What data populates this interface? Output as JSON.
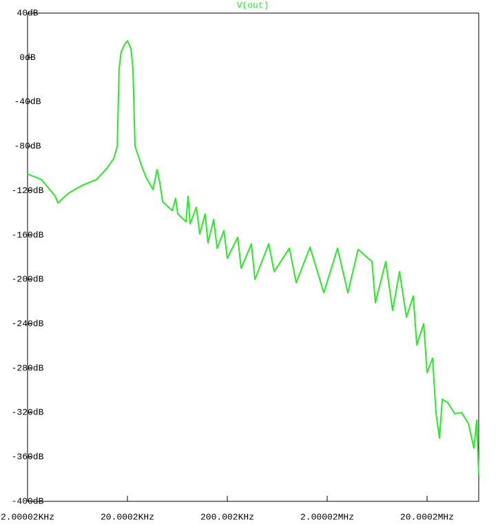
{
  "chart_data": {
    "type": "line",
    "title": "V(out)",
    "color": "#22ee22",
    "xscale": "log",
    "x": [
      2000,
      2750,
      3780,
      4020,
      5190,
      7130,
      9790,
      12400,
      14600,
      15800,
      16500,
      17300,
      18800,
      20000,
      21700,
      22700,
      23800,
      27500,
      30700,
      36000,
      39600,
      42200,
      45000,
      56100,
      60800,
      63700,
      77100,
      80900,
      84900,
      97900,
      106000,
      120000,
      128000,
      146000,
      158000,
      185000,
      200000,
      254000,
      275000,
      348000,
      378000,
      519000,
      589000,
      836000,
      979000,
      1346000,
      1849000,
      2536000,
      3222000,
      4083000,
      5611000,
      6082000,
      7709000,
      9036000,
      10590000,
      12420000,
      14560000,
      15770000,
      18490000,
      20000000,
      22700000,
      24600000,
      26600000,
      28400000,
      32200000,
      37800000,
      44300000,
      51900000,
      58900000,
      62800000,
      65800000
    ],
    "values": [
      -105,
      -110,
      -125,
      -131,
      -122,
      -115,
      -110,
      -100,
      -91,
      -80,
      -10,
      5,
      12,
      15,
      8,
      -10,
      -80,
      -97,
      -108,
      -119,
      -101,
      -113,
      -130,
      -138,
      -127,
      -141,
      -148,
      -125,
      -150,
      -135,
      -159,
      -141,
      -167,
      -146,
      -172,
      -156,
      -181,
      -162,
      -190,
      -168,
      -200,
      -168,
      -193,
      -172,
      -203,
      -171,
      -212,
      -172,
      -212,
      -173,
      -184,
      -221,
      -184,
      -228,
      -193,
      -234,
      -215,
      -259,
      -240,
      -284,
      -271,
      -321,
      -343,
      -308,
      -311,
      -321,
      -320,
      -330,
      -352,
      -327,
      -377
    ],
    "xlim": [
      2000.02,
      65800000
    ],
    "ylim": [
      -400,
      40
    ],
    "xticks": [
      {
        "value": 2000.02,
        "label": "2.00002KHz"
      },
      {
        "value": 20000.2,
        "label": "20.0002KHz"
      },
      {
        "value": 200002,
        "label": "200.002KHz"
      },
      {
        "value": 2000020,
        "label": "2.00002MHz"
      },
      {
        "value": 20000200,
        "label": "20.0002MHz"
      }
    ],
    "yticks": [
      {
        "value": 40,
        "label": "40dB"
      },
      {
        "value": 0,
        "label": "0dB"
      },
      {
        "value": -40,
        "label": "-40dB"
      },
      {
        "value": -80,
        "label": "-80dB"
      },
      {
        "value": -120,
        "label": "-120dB"
      },
      {
        "value": -160,
        "label": "-160dB"
      },
      {
        "value": -200,
        "label": "-200dB"
      },
      {
        "value": -240,
        "label": "-240dB"
      },
      {
        "value": -280,
        "label": "-280dB"
      },
      {
        "value": -320,
        "label": "-320dB"
      },
      {
        "value": -360,
        "label": "-360dB"
      },
      {
        "value": -400,
        "label": "-400dB"
      }
    ]
  }
}
